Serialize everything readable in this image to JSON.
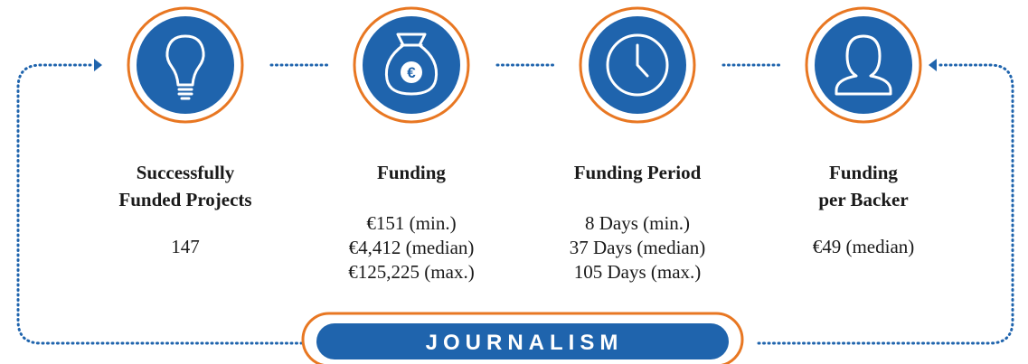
{
  "items": [
    {
      "title": [
        "Successfully",
        "Funded Projects"
      ],
      "values": [
        "147"
      ]
    },
    {
      "title": [
        "Funding"
      ],
      "values": [
        "€151 (min.)",
        "€4,412 (median)",
        "€125,225 (max.)"
      ]
    },
    {
      "title": [
        "Funding Period"
      ],
      "values": [
        "8 Days (min.)",
        "37 Days (median)",
        "105 Days (max.)"
      ]
    },
    {
      "title": [
        "Funding",
        "per Backer"
      ],
      "values": [
        "€49 (median)"
      ]
    }
  ],
  "banner": "JOURNALISM"
}
